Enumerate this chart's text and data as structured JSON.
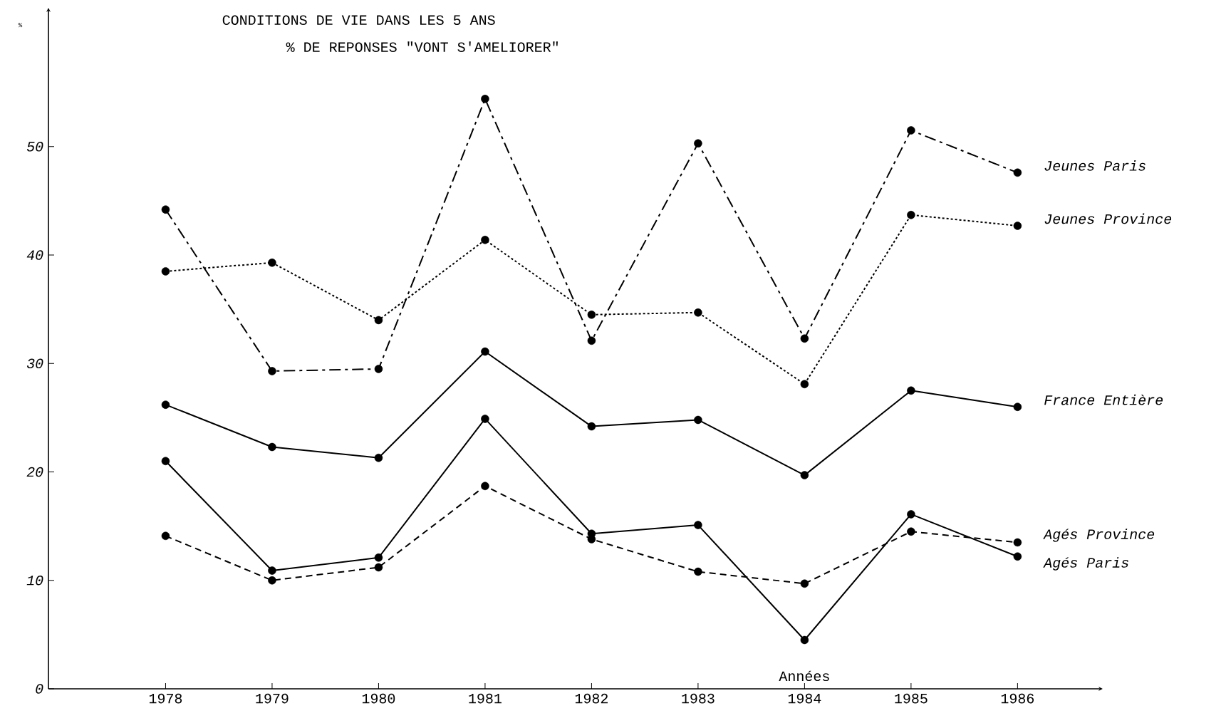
{
  "chart_data": {
    "type": "line",
    "title": "CONDITIONS DE VIE DANS LES 5 ANS",
    "subtitle": "% DE REPONSES \"VONT S'AMELIORER\"",
    "xlabel": "Années",
    "ylabel": "%",
    "x": [
      1978,
      1979,
      1980,
      1981,
      1982,
      1983,
      1984,
      1985,
      1986
    ],
    "series": [
      {
        "name": "Jeunes Paris",
        "color": "#000000",
        "line_style": "dashdot",
        "values": [
          44.2,
          29.3,
          29.5,
          54.4,
          32.1,
          50.3,
          32.3,
          51.5,
          47.6
        ]
      },
      {
        "name": "Jeunes Province",
        "color": "#000000",
        "line_style": "dotted",
        "values": [
          38.5,
          39.3,
          34.0,
          41.4,
          34.5,
          34.7,
          28.1,
          43.7,
          42.7
        ]
      },
      {
        "name": "France Entière",
        "color": "#000000",
        "line_style": "solid",
        "values": [
          26.2,
          22.3,
          21.3,
          31.1,
          24.2,
          24.8,
          19.7,
          27.5,
          26.0
        ]
      },
      {
        "name": "Agés Province",
        "color": "#000000",
        "line_style": "dashed",
        "values": [
          14.1,
          10.0,
          11.2,
          18.7,
          13.8,
          10.8,
          9.7,
          14.5,
          13.5
        ]
      },
      {
        "name": "Agés Paris",
        "color": "#000000",
        "line_style": "solid",
        "values": [
          21.0,
          10.9,
          12.1,
          24.9,
          14.3,
          15.1,
          4.5,
          16.1,
          12.2
        ]
      }
    ],
    "xlim": [
      1976.9,
      1986.8
    ],
    "ylim": [
      0,
      62.8
    ],
    "xticks": [
      1978,
      1979,
      1980,
      1981,
      1982,
      1983,
      1984,
      1985,
      1986
    ],
    "yticks": [
      0,
      10,
      20,
      30,
      40,
      50
    ],
    "marker": "circle",
    "grid": false
  }
}
